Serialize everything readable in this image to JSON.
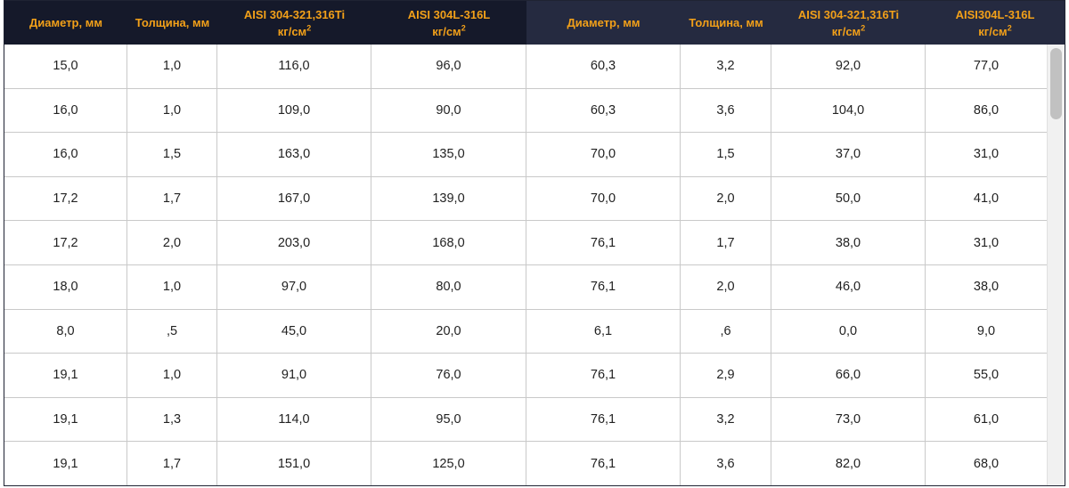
{
  "table": {
    "headers": [
      {
        "line1": "Диаметр, мм",
        "line2": "",
        "sup": ""
      },
      {
        "line1": "Толщина, мм",
        "line2": "",
        "sup": ""
      },
      {
        "line1": "AISI 304-321,316Ti",
        "line2": "кг/см",
        "sup": "2"
      },
      {
        "line1": "AISI 304L-316L",
        "line2": "кг/см",
        "sup": "2"
      },
      {
        "line1": "Диаметр, мм",
        "line2": "",
        "sup": ""
      },
      {
        "line1": "Толщина, мм",
        "line2": "",
        "sup": ""
      },
      {
        "line1": "AISI 304-321,316Ti",
        "line2": "кг/см",
        "sup": "2"
      },
      {
        "line1": "AISI304L-316L",
        "line2": "кг/см",
        "sup": "2"
      }
    ],
    "rows": [
      [
        "15,0",
        "1,0",
        "116,0",
        "96,0",
        "60,3",
        "3,2",
        "92,0",
        "77,0"
      ],
      [
        "16,0",
        "1,0",
        "109,0",
        "90,0",
        "60,3",
        "3,6",
        "104,0",
        "86,0"
      ],
      [
        "16,0",
        "1,5",
        "163,0",
        "135,0",
        "70,0",
        "1,5",
        "37,0",
        "31,0"
      ],
      [
        "17,2",
        "1,7",
        "167,0",
        "139,0",
        "70,0",
        "2,0",
        "50,0",
        "41,0"
      ],
      [
        "17,2",
        "2,0",
        "203,0",
        "168,0",
        "76,1",
        "1,7",
        "38,0",
        "31,0"
      ],
      [
        "18,0",
        "1,0",
        "97,0",
        "80,0",
        "76,1",
        "2,0",
        "46,0",
        "38,0"
      ],
      [
        "8,0",
        ",5",
        "45,0",
        "20,0",
        "6,1",
        ",6",
        "0,0",
        "9,0"
      ],
      [
        "19,1",
        "1,0",
        "91,0",
        "76,0",
        "76,1",
        "2,9",
        "66,0",
        "55,0"
      ],
      [
        "19,1",
        "1,3",
        "114,0",
        "95,0",
        "76,1",
        "3,2",
        "73,0",
        "61,0"
      ],
      [
        "19,1",
        "1,7",
        "151,0",
        "125,0",
        "76,1",
        "3,6",
        "82,0",
        "68,0"
      ]
    ]
  },
  "colors": {
    "header_left_bg": "#15192a",
    "header_right_bg": "#252a40",
    "header_text": "#f2a019"
  }
}
